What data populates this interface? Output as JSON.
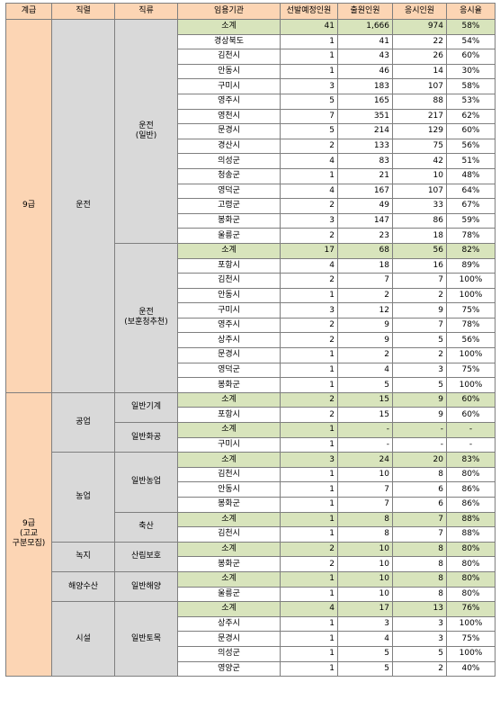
{
  "headers": [
    "계급",
    "직렬",
    "직류",
    "임용기관",
    "선발예정인원",
    "출원인원",
    "응시인원",
    "응시율"
  ],
  "grades": [
    {
      "label": "9급"
    },
    {
      "label": "9급\n(고교\n구분모집)"
    }
  ],
  "series": [
    {
      "label": "운전"
    },
    {
      "label": "공업"
    },
    {
      "label": "농업"
    },
    {
      "label": "녹지"
    },
    {
      "label": "해양수산"
    },
    {
      "label": "시설"
    }
  ],
  "types": [
    {
      "label": "운전\n(일반)"
    },
    {
      "label": "운전\n(보훈청추천)"
    },
    {
      "label": "일반기계"
    },
    {
      "label": "일반화공"
    },
    {
      "label": "일반농업"
    },
    {
      "label": "축산"
    },
    {
      "label": "산림보호"
    },
    {
      "label": "일반해양"
    },
    {
      "label": "일반토목"
    }
  ],
  "rows": [
    {
      "org": "소계",
      "sel": "41",
      "app": "1,666",
      "exam": "974",
      "rate": "58%",
      "sub": true
    },
    {
      "org": "경상북도",
      "sel": "1",
      "app": "41",
      "exam": "22",
      "rate": "54%"
    },
    {
      "org": "김천시",
      "sel": "1",
      "app": "43",
      "exam": "26",
      "rate": "60%"
    },
    {
      "org": "안동시",
      "sel": "1",
      "app": "46",
      "exam": "14",
      "rate": "30%"
    },
    {
      "org": "구미시",
      "sel": "3",
      "app": "183",
      "exam": "107",
      "rate": "58%"
    },
    {
      "org": "영주시",
      "sel": "5",
      "app": "165",
      "exam": "88",
      "rate": "53%"
    },
    {
      "org": "영천시",
      "sel": "7",
      "app": "351",
      "exam": "217",
      "rate": "62%"
    },
    {
      "org": "문경시",
      "sel": "5",
      "app": "214",
      "exam": "129",
      "rate": "60%"
    },
    {
      "org": "경산시",
      "sel": "2",
      "app": "133",
      "exam": "75",
      "rate": "56%"
    },
    {
      "org": "의성군",
      "sel": "4",
      "app": "83",
      "exam": "42",
      "rate": "51%"
    },
    {
      "org": "청송군",
      "sel": "1",
      "app": "21",
      "exam": "10",
      "rate": "48%"
    },
    {
      "org": "영덕군",
      "sel": "4",
      "app": "167",
      "exam": "107",
      "rate": "64%"
    },
    {
      "org": "고령군",
      "sel": "2",
      "app": "49",
      "exam": "33",
      "rate": "67%"
    },
    {
      "org": "봉화군",
      "sel": "3",
      "app": "147",
      "exam": "86",
      "rate": "59%"
    },
    {
      "org": "울릉군",
      "sel": "2",
      "app": "23",
      "exam": "18",
      "rate": "78%"
    },
    {
      "org": "소계",
      "sel": "17",
      "app": "68",
      "exam": "56",
      "rate": "82%",
      "sub": true
    },
    {
      "org": "포항시",
      "sel": "4",
      "app": "18",
      "exam": "16",
      "rate": "89%"
    },
    {
      "org": "김천시",
      "sel": "2",
      "app": "7",
      "exam": "7",
      "rate": "100%"
    },
    {
      "org": "안동시",
      "sel": "1",
      "app": "2",
      "exam": "2",
      "rate": "100%"
    },
    {
      "org": "구미시",
      "sel": "3",
      "app": "12",
      "exam": "9",
      "rate": "75%"
    },
    {
      "org": "영주시",
      "sel": "2",
      "app": "9",
      "exam": "7",
      "rate": "78%"
    },
    {
      "org": "상주시",
      "sel": "2",
      "app": "9",
      "exam": "5",
      "rate": "56%"
    },
    {
      "org": "문경시",
      "sel": "1",
      "app": "2",
      "exam": "2",
      "rate": "100%"
    },
    {
      "org": "영덕군",
      "sel": "1",
      "app": "4",
      "exam": "3",
      "rate": "75%"
    },
    {
      "org": "봉화군",
      "sel": "1",
      "app": "5",
      "exam": "5",
      "rate": "100%"
    },
    {
      "org": "소계",
      "sel": "2",
      "app": "15",
      "exam": "9",
      "rate": "60%",
      "sub": true
    },
    {
      "org": "포항시",
      "sel": "2",
      "app": "15",
      "exam": "9",
      "rate": "60%"
    },
    {
      "org": "소계",
      "sel": "1",
      "app": "-",
      "exam": "-",
      "rate": "-",
      "sub": true
    },
    {
      "org": "구미시",
      "sel": "1",
      "app": "-",
      "exam": "-",
      "rate": "-"
    },
    {
      "org": "소계",
      "sel": "3",
      "app": "24",
      "exam": "20",
      "rate": "83%",
      "sub": true
    },
    {
      "org": "김천시",
      "sel": "1",
      "app": "10",
      "exam": "8",
      "rate": "80%"
    },
    {
      "org": "안동시",
      "sel": "1",
      "app": "7",
      "exam": "6",
      "rate": "86%"
    },
    {
      "org": "봉화군",
      "sel": "1",
      "app": "7",
      "exam": "6",
      "rate": "86%"
    },
    {
      "org": "소계",
      "sel": "1",
      "app": "8",
      "exam": "7",
      "rate": "88%",
      "sub": true
    },
    {
      "org": "김천시",
      "sel": "1",
      "app": "8",
      "exam": "7",
      "rate": "88%"
    },
    {
      "org": "소계",
      "sel": "2",
      "app": "10",
      "exam": "8",
      "rate": "80%",
      "sub": true
    },
    {
      "org": "봉화군",
      "sel": "2",
      "app": "10",
      "exam": "8",
      "rate": "80%"
    },
    {
      "org": "소계",
      "sel": "1",
      "app": "10",
      "exam": "8",
      "rate": "80%",
      "sub": true
    },
    {
      "org": "울릉군",
      "sel": "1",
      "app": "10",
      "exam": "8",
      "rate": "80%"
    },
    {
      "org": "소계",
      "sel": "4",
      "app": "17",
      "exam": "13",
      "rate": "76%",
      "sub": true
    },
    {
      "org": "상주시",
      "sel": "1",
      "app": "3",
      "exam": "3",
      "rate": "100%"
    },
    {
      "org": "문경시",
      "sel": "1",
      "app": "4",
      "exam": "3",
      "rate": "75%"
    },
    {
      "org": "의성군",
      "sel": "1",
      "app": "5",
      "exam": "5",
      "rate": "100%"
    },
    {
      "org": "영양군",
      "sel": "1",
      "app": "5",
      "exam": "2",
      "rate": "40%"
    }
  ]
}
